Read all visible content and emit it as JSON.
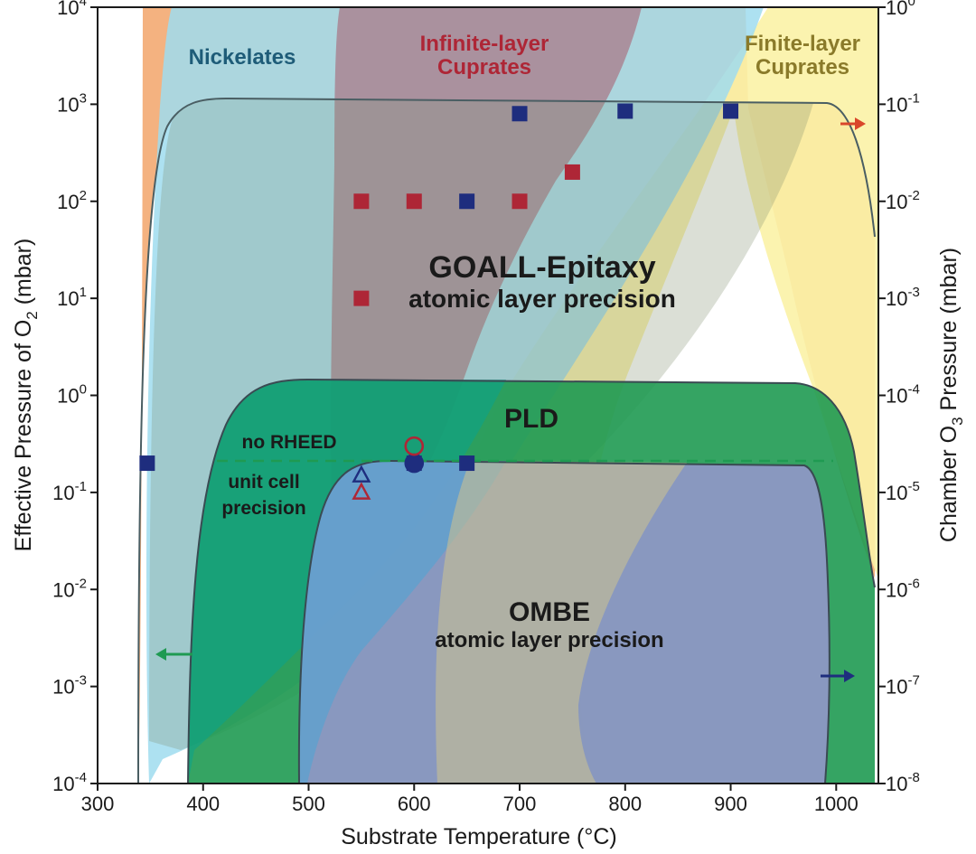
{
  "chart_data": {
    "type": "scatter",
    "xlabel": "Substrate Temperature (°C)",
    "ylabel_left": "Effective Pressure of O",
    "ylabel_left_sub": "2",
    "ylabel_left_unit": " (mbar)",
    "ylabel_right": "Chamber O",
    "ylabel_right_sub": "3",
    "ylabel_right_unit": " Pressure (mbar)",
    "xlim": [
      300,
      1040
    ],
    "ylim_left": [
      0.0001,
      10000
    ],
    "ylim_right": [
      1e-08,
      1
    ],
    "yscale": "log",
    "x_ticks": [
      "300",
      "400",
      "500",
      "600",
      "700",
      "800",
      "900",
      "1000"
    ],
    "y_left_ticks": [
      {
        "base": "10",
        "exp": "-4",
        "value": 0.0001
      },
      {
        "base": "10",
        "exp": "-3",
        "value": 0.001
      },
      {
        "base": "10",
        "exp": "-2",
        "value": 0.01
      },
      {
        "base": "10",
        "exp": "-1",
        "value": 0.1
      },
      {
        "base": "10",
        "exp": "0",
        "value": 1
      },
      {
        "base": "10",
        "exp": "1",
        "value": 10
      },
      {
        "base": "10",
        "exp": "2",
        "value": 100
      },
      {
        "base": "10",
        "exp": "3",
        "value": 1000
      },
      {
        "base": "10",
        "exp": "4",
        "value": 10000
      }
    ],
    "y_right_ticks": [
      {
        "base": "10",
        "exp": "-8",
        "value": 1e-08
      },
      {
        "base": "10",
        "exp": "-7",
        "value": 1e-07
      },
      {
        "base": "10",
        "exp": "-6",
        "value": 1e-06
      },
      {
        "base": "10",
        "exp": "-5",
        "value": 1e-05
      },
      {
        "base": "10",
        "exp": "-4",
        "value": 0.0001
      },
      {
        "base": "10",
        "exp": "-3",
        "value": 0.001
      },
      {
        "base": "10",
        "exp": "-2",
        "value": 0.01
      },
      {
        "base": "10",
        "exp": "-1",
        "value": 0.1
      },
      {
        "base": "10",
        "exp": "0",
        "value": 1
      }
    ],
    "regions": [
      {
        "name": "Nickelates",
        "color": "#9fdcef"
      },
      {
        "name": "Infinite-layer Cuprates",
        "color": "#a9596a"
      },
      {
        "name": "Finite-layer Cuprates",
        "color": "#fbf2a6"
      },
      {
        "name": "GOALL-Epitaxy",
        "color": "#f2a56a"
      },
      {
        "name": "PLD",
        "color": "#1f9a52"
      },
      {
        "name": "OMBE",
        "color": "#8e98c4"
      }
    ],
    "series": [
      {
        "marker": "square",
        "color": "#1e2d7e",
        "x": [
          347,
          600,
          650,
          700,
          800,
          900,
          650
        ],
        "y": [
          0.2,
          0.2,
          100,
          800,
          850,
          850,
          0.2
        ]
      },
      {
        "marker": "square",
        "color": "#ae2636",
        "x": [
          550,
          550,
          600,
          700,
          750
        ],
        "y": [
          10,
          100,
          100,
          100,
          200
        ]
      },
      {
        "marker": "circle-open",
        "color": "#1e2d7e",
        "x": [
          600
        ],
        "y": [
          0.2
        ]
      },
      {
        "marker": "circle-open",
        "color": "#ae2636",
        "x": [
          600
        ],
        "y": [
          0.3
        ]
      },
      {
        "marker": "triangle-open",
        "color": "#1e2d7e",
        "x": [
          550
        ],
        "y": [
          0.15
        ]
      },
      {
        "marker": "triangle-open",
        "color": "#ae2636",
        "x": [
          550
        ],
        "y": [
          0.1
        ]
      }
    ],
    "reference_line": {
      "y": 0.2,
      "style": "dashed",
      "color": "#1f9a52"
    },
    "annotations": {
      "nickelates": "Nickelates",
      "infinite_1": "Infinite-layer",
      "infinite_2": "Cuprates",
      "finite_1": "Finite-layer",
      "finite_2": "Cuprates",
      "goall": "GOALL-Epitaxy",
      "goall_sub": "atomic layer precision",
      "pld": "PLD",
      "no_rheed": "no RHEED",
      "unit_cell_1": "unit cell",
      "unit_cell_2": "precision",
      "ombe": "OMBE",
      "ombe_sub": "atomic layer precision"
    },
    "arrows": [
      {
        "direction": "left",
        "axis": "left",
        "color": "#1f9a52"
      },
      {
        "direction": "right",
        "axis": "right",
        "color": "#1e2d7e"
      },
      {
        "direction": "right",
        "axis": "right",
        "color": "#d9472b"
      }
    ]
  }
}
